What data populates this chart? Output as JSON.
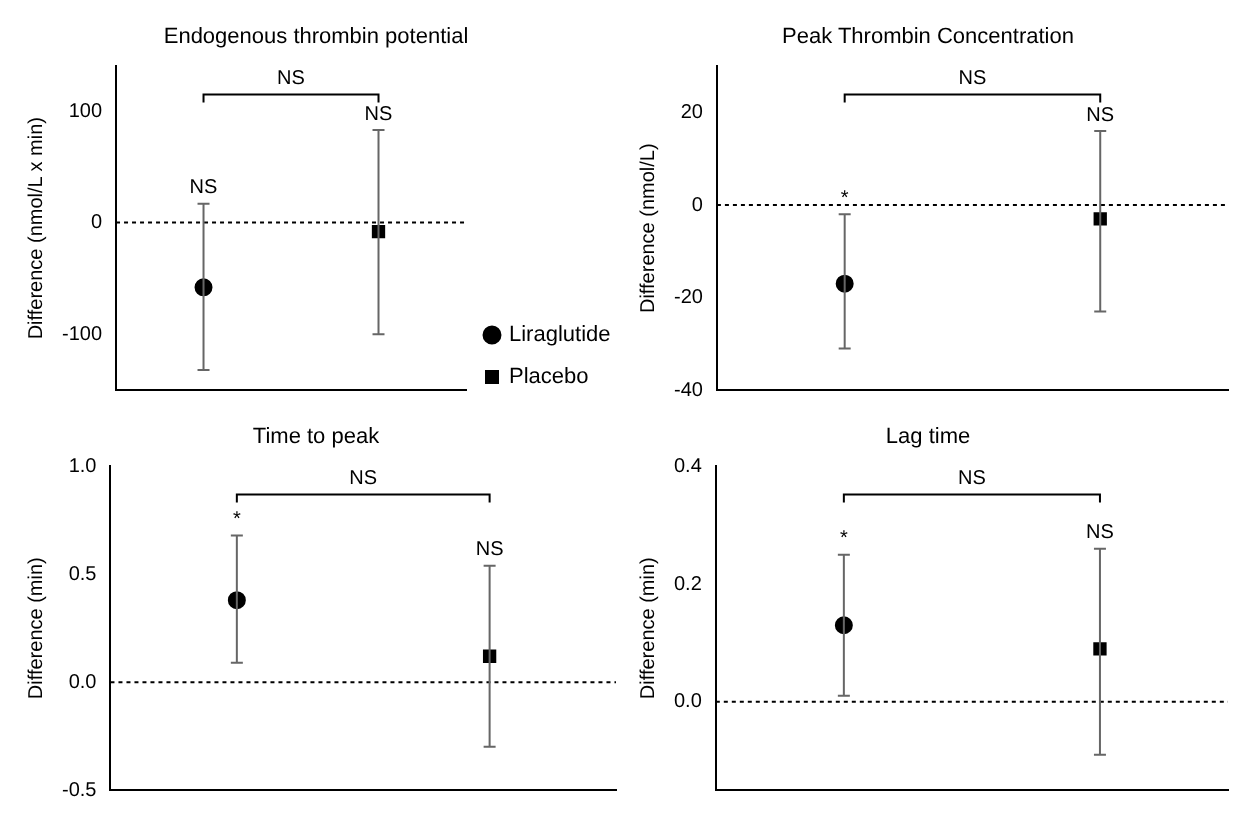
{
  "chart_data": [
    {
      "type": "scatter",
      "title": "Endogenous thrombin potential",
      "ylabel": "Difference (nmol/L x min)",
      "categories": [
        null,
        null
      ],
      "ylim": [
        -150,
        140
      ],
      "yticks": [
        -100,
        0,
        100
      ],
      "tick_labels": "y",
      "grid": false,
      "legend": "bottom right",
      "ref_lines": [
        {
          "axis": "y",
          "value": 0,
          "line_style": "dotted",
          "color": "#000000"
        }
      ],
      "annotations": [
        "NS",
        {
          "text": "NS",
          "y": 17
        },
        {
          "text": "NS",
          "y": 83
        }
      ],
      "series": [
        {
          "name": "Liraglutide",
          "color": "#000000",
          "marker": "circle",
          "values": [
            -58,
            null
          ],
          "errors": [
            [
              -132,
              17
            ],
            null
          ]
        },
        {
          "name": "Placebo",
          "color": "#000000",
          "marker": "square",
          "values": [
            null,
            -8
          ],
          "errors": [
            null,
            [
              -100,
              83
            ]
          ]
        }
      ]
    },
    {
      "type": "scatter",
      "title": "Peak Thrombin Concentration",
      "ylabel": "Difference (nmol/L)",
      "categories": [
        null,
        null
      ],
      "ylim": [
        -40,
        30
      ],
      "yticks": [
        -40,
        -20,
        0,
        20
      ],
      "tick_labels": "y",
      "grid": false,
      "ref_lines": [
        {
          "axis": "y",
          "value": 0,
          "line_style": "dotted",
          "color": "#000000"
        }
      ],
      "annotations": [
        "NS",
        {
          "text": "*",
          "y": -2
        },
        {
          "text": "NS",
          "y": 16
        }
      ],
      "series": [
        {
          "color": "#000000",
          "marker": "circle",
          "values": [
            -17,
            null
          ],
          "errors": [
            [
              -31,
              -2
            ],
            null
          ]
        },
        {
          "color": "#000000",
          "marker": "square",
          "values": [
            null,
            -3
          ],
          "errors": [
            null,
            [
              -23,
              16
            ]
          ]
        }
      ]
    },
    {
      "type": "scatter",
      "title": "Time to peak",
      "ylabel": "Difference (min)",
      "categories": [
        null,
        null
      ],
      "ylim": [
        -0.5,
        1.0
      ],
      "yticks": [
        {
          "value": -0.5,
          "label": "-0.5"
        },
        {
          "value": 0,
          "label": "0.0"
        },
        {
          "value": 0.5,
          "label": "0.5"
        },
        {
          "value": 1,
          "label": "1.0"
        }
      ],
      "tick_labels": "y",
      "grid": false,
      "ref_lines": [
        {
          "axis": "y",
          "value": 0,
          "line_style": "dotted",
          "color": "#000000"
        }
      ],
      "annotations": [
        "NS",
        {
          "text": "*",
          "y": 0.68
        },
        {
          "text": "NS",
          "y": 0.54
        }
      ],
      "series": [
        {
          "color": "#000000",
          "marker": "circle",
          "values": [
            0.38,
            null
          ],
          "errors": [
            [
              0.09,
              0.68
            ],
            null
          ]
        },
        {
          "color": "#000000",
          "marker": "square",
          "values": [
            null,
            0.12
          ],
          "errors": [
            null,
            [
              -0.3,
              0.54
            ]
          ]
        }
      ]
    },
    {
      "type": "scatter",
      "title": "Lag time",
      "ylabel": "Difference (min)",
      "categories": [
        null,
        null
      ],
      "ylim": [
        -0.15,
        0.4
      ],
      "yticks": [
        {
          "value": 0,
          "label": "0.0"
        },
        {
          "value": 0.2,
          "label": "0.2"
        },
        {
          "value": 0.4,
          "label": "0.4"
        }
      ],
      "tick_labels": "y",
      "grid": false,
      "ref_lines": [
        {
          "axis": "y",
          "value": 0,
          "line_style": "dotted",
          "color": "#000000"
        }
      ],
      "annotations": [
        "NS",
        {
          "text": "*",
          "y": 0.25
        },
        {
          "text": "NS",
          "y": 0.26
        }
      ],
      "series": [
        {
          "color": "#000000",
          "marker": "circle",
          "values": [
            0.13,
            null
          ],
          "errors": [
            [
              0.01,
              0.25
            ],
            null
          ]
        },
        {
          "color": "#000000",
          "marker": "square",
          "values": [
            null,
            0.09
          ],
          "errors": [
            null,
            [
              -0.09,
              0.26
            ]
          ]
        }
      ]
    }
  ]
}
